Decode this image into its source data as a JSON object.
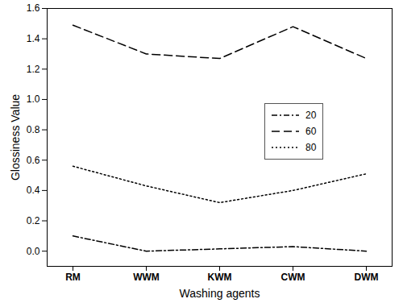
{
  "chart_data": {
    "type": "line",
    "x_label": "Washing agents",
    "y_label": "Glossiness Value",
    "categories": [
      "RM",
      "WWM",
      "KWM",
      "CWM",
      "DWM"
    ],
    "series": [
      {
        "name": "20",
        "color": "#000000",
        "line_style": "dashdot",
        "values": [
          0.1,
          0.0,
          0.015,
          0.03,
          0.0
        ]
      },
      {
        "name": "60",
        "color": "#000000",
        "line_style": "dashed",
        "values": [
          1.49,
          1.3,
          1.27,
          1.48,
          1.27
        ]
      },
      {
        "name": "80",
        "color": "#000000",
        "line_style": "dotted",
        "values": [
          0.56,
          0.43,
          0.32,
          0.4,
          0.51
        ]
      }
    ],
    "ylim": [
      -0.1,
      1.6
    ],
    "yticks": [
      {
        "value": 0,
        "label": "0.0"
      },
      0.2,
      0.4,
      0.6,
      0.8,
      {
        "value": 1,
        "label": "1.0"
      },
      1.2,
      1.4,
      1.6
    ],
    "legend": "right",
    "grid": false
  }
}
